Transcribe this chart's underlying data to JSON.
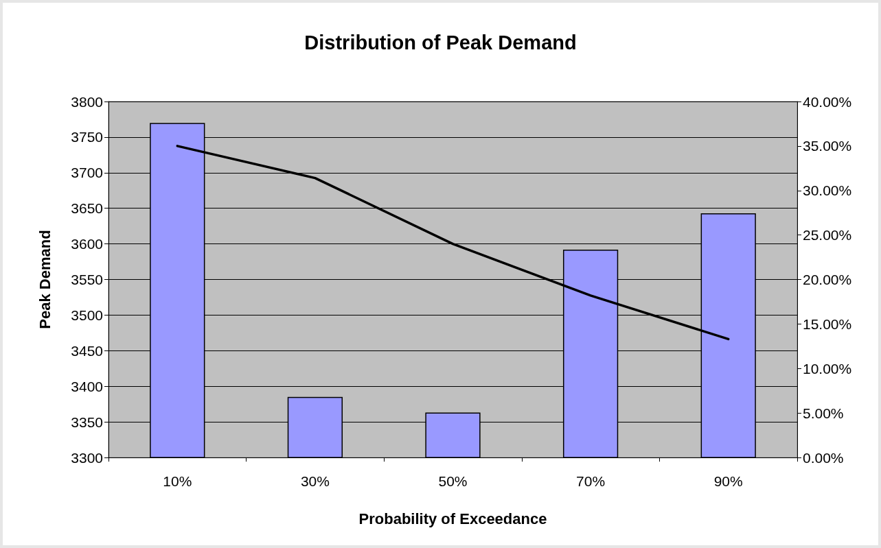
{
  "chart_data": {
    "type": "bar",
    "title": "Distribution of Peak Demand",
    "xlabel": "Probability of Exceedance",
    "ylabel": "Peak Demand",
    "categories": [
      "10%",
      "30%",
      "50%",
      "70%",
      "90%"
    ],
    "series": [
      {
        "color": "#9999ff",
        "values": [
          3770,
          3385,
          3363,
          3592,
          3643
        ]
      },
      {
        "type": "line",
        "axis": "y2",
        "color": "#000000",
        "values": [
          35.0,
          31.4,
          24.0,
          18.2,
          13.3
        ]
      }
    ],
    "ylim": [
      3300,
      3800
    ],
    "yticks": [
      3300,
      3350,
      3400,
      3450,
      3500,
      3550,
      3600,
      3650,
      3700,
      3750,
      3800
    ],
    "y2lim": [
      0,
      40
    ],
    "y2ticks": [
      {
        "value": 0,
        "label": "0.00%"
      },
      {
        "value": 5,
        "label": "5.00%"
      },
      {
        "value": 10,
        "label": "10.00%"
      },
      {
        "value": 15,
        "label": "15.00%"
      },
      {
        "value": 20,
        "label": "20.00%"
      },
      {
        "value": 25,
        "label": "25.00%"
      },
      {
        "value": 30,
        "label": "30.00%"
      },
      {
        "value": 35,
        "label": "35.00%"
      },
      {
        "value": 40,
        "label": "40.00%"
      }
    ],
    "grid": "y",
    "marker": "none",
    "line_style": "solid"
  }
}
